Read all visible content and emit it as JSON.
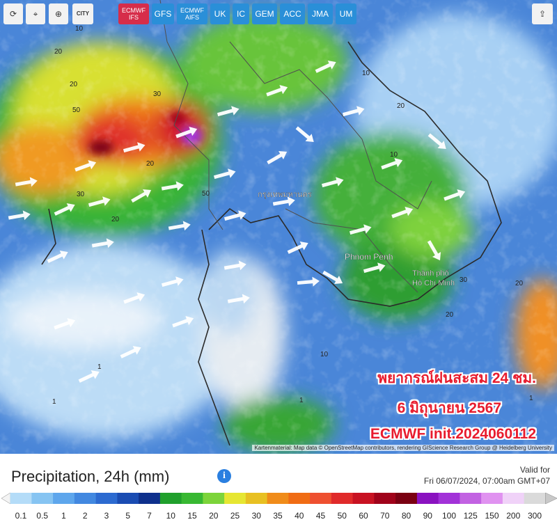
{
  "toolbar": {
    "city": "CITY",
    "models": [
      {
        "label": "ECMWF IFS",
        "active": true
      },
      {
        "label": "GFS",
        "active": false
      },
      {
        "label": "ECMWF AIFS",
        "active": false
      },
      {
        "label": "UK",
        "active": false
      },
      {
        "label": "IC",
        "active": false
      },
      {
        "label": "GEM",
        "active": false
      },
      {
        "label": "ACC",
        "active": false
      },
      {
        "label": "JMA",
        "active": false
      },
      {
        "label": "UM",
        "active": false
      }
    ]
  },
  "map": {
    "labels": [
      "กรุงเทพมหานคร",
      "Phnom Penh",
      "Thành phố",
      "Hồ Chí Minh",
      "20",
      "10",
      "20",
      "50",
      "30",
      "20",
      "20",
      "30",
      "20",
      "50",
      "30",
      "10",
      "10",
      "20",
      "10",
      "1",
      "1",
      "1",
      "1",
      "20"
    ],
    "overlay": [
      "พยากรณ์ฝนสะสม 24 ชม.",
      "6 มิถุนายน 2567",
      "ECMWF init.2024060112"
    ],
    "attribution": "Kartenmaterial: Map data © OpenStreetMap contributors, rendering GIScience Research Group @ Heidelberg University"
  },
  "legend": {
    "title": "Precipitation, 24h (mm)",
    "valid_label": "Valid for",
    "valid_time": "Fri 06/07/2024, 07:00am GMT+07",
    "scale": [
      {
        "value": 0.1,
        "color": "#b4dcf8"
      },
      {
        "value": 0.5,
        "color": "#86c4f2"
      },
      {
        "value": 1,
        "color": "#5ea6ec"
      },
      {
        "value": 2,
        "color": "#4288e0"
      },
      {
        "value": 3,
        "color": "#2c6ad0"
      },
      {
        "value": 5,
        "color": "#1a4cb2"
      },
      {
        "value": 7,
        "color": "#0e308c"
      },
      {
        "value": 10,
        "color": "#20a02c"
      },
      {
        "value": 15,
        "color": "#38b832"
      },
      {
        "value": 20,
        "color": "#7cd43a"
      },
      {
        "value": 25,
        "color": "#e6e632"
      },
      {
        "value": 30,
        "color": "#e8c022"
      },
      {
        "value": 35,
        "color": "#f08c1a"
      },
      {
        "value": 40,
        "color": "#f06c14"
      },
      {
        "value": 45,
        "color": "#ee5030"
      },
      {
        "value": 50,
        "color": "#e02a2a"
      },
      {
        "value": 60,
        "color": "#c81222"
      },
      {
        "value": 70,
        "color": "#a0021a"
      },
      {
        "value": 80,
        "color": "#7a0012"
      },
      {
        "value": 90,
        "color": "#8a12c0"
      },
      {
        "value": 100,
        "color": "#a232d8"
      },
      {
        "value": 125,
        "color": "#c262e2"
      },
      {
        "value": 150,
        "color": "#e092f0"
      },
      {
        "value": 200,
        "color": "#f0d2f8"
      },
      {
        "value": 300,
        "color": "#dadada"
      }
    ]
  }
}
